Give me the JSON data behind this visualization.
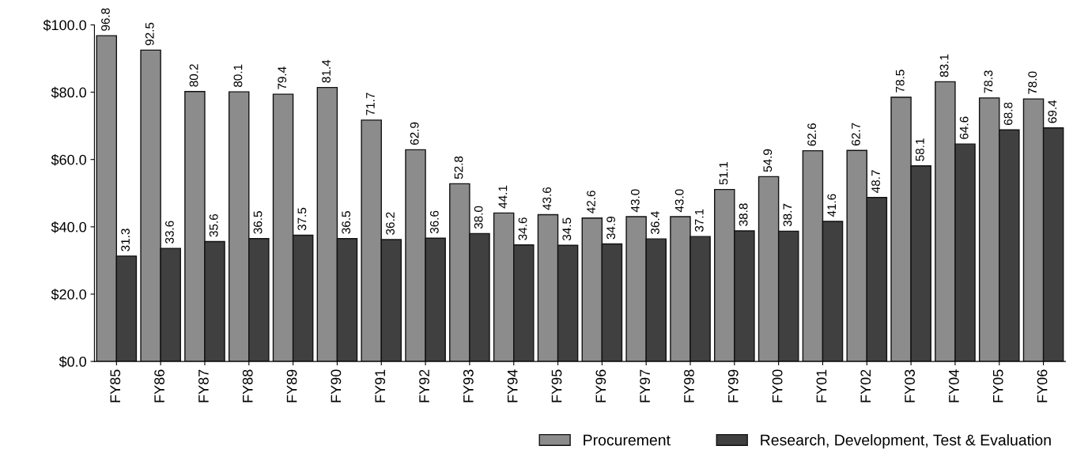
{
  "chart_data": {
    "type": "bar",
    "categories": [
      "FY85",
      "FY86",
      "FY87",
      "FY88",
      "FY89",
      "FY90",
      "FY91",
      "FY92",
      "FY93",
      "FY94",
      "FY95",
      "FY96",
      "FY97",
      "FY98",
      "FY99",
      "FY00",
      "FY01",
      "FY02",
      "FY03",
      "FY04",
      "FY05",
      "FY06"
    ],
    "series": [
      {
        "name": "Procurement",
        "color": "#8c8c8c",
        "values": [
          96.8,
          92.5,
          80.2,
          80.1,
          79.4,
          81.4,
          71.7,
          62.9,
          52.8,
          44.1,
          43.6,
          42.6,
          43.0,
          43.0,
          51.1,
          54.9,
          62.6,
          62.7,
          78.5,
          83.1,
          78.3,
          78.0
        ],
        "value_labels": [
          "96.8",
          "92.5",
          "80.2",
          "80.1",
          "79.4",
          "81.4",
          "71.7",
          "62.9",
          "52.8",
          "44.1",
          "43.6",
          "42.6",
          "43.0",
          "43.0",
          "51.1",
          "54.9",
          "62.6",
          "62.7",
          "78.5",
          "83.1",
          "78.3",
          "78.0"
        ]
      },
      {
        "name": "Research, Development, Test & Evaluation",
        "color": "#404040",
        "values": [
          31.3,
          33.6,
          35.6,
          36.5,
          37.5,
          36.5,
          36.2,
          36.6,
          38.0,
          34.6,
          34.5,
          34.9,
          36.4,
          37.1,
          38.8,
          38.7,
          41.6,
          48.7,
          58.1,
          64.6,
          68.8,
          69.4
        ],
        "value_labels": [
          "31.3",
          "33.6",
          "35.6",
          "36.5",
          "37.5",
          "36.5",
          "36.2",
          "36.6",
          "38.0",
          "34.6",
          "34.5",
          "34.9",
          "36.4",
          "37.1",
          "38.8",
          "38.7",
          "41.6",
          "48.7",
          "58.1",
          "64.6",
          "68.8",
          "69.4"
        ]
      }
    ],
    "ylim": [
      0,
      100
    ],
    "yticks": [
      {
        "value": 0,
        "label": "$0.0"
      },
      {
        "value": 20,
        "label": "$20.0"
      },
      {
        "value": 40,
        "label": "$40.0"
      },
      {
        "value": 60,
        "label": "$60.0"
      },
      {
        "value": 80,
        "label": "$80.0"
      },
      {
        "value": 100,
        "label": "$100.0"
      }
    ],
    "grid": false,
    "legend": "bottom right"
  }
}
